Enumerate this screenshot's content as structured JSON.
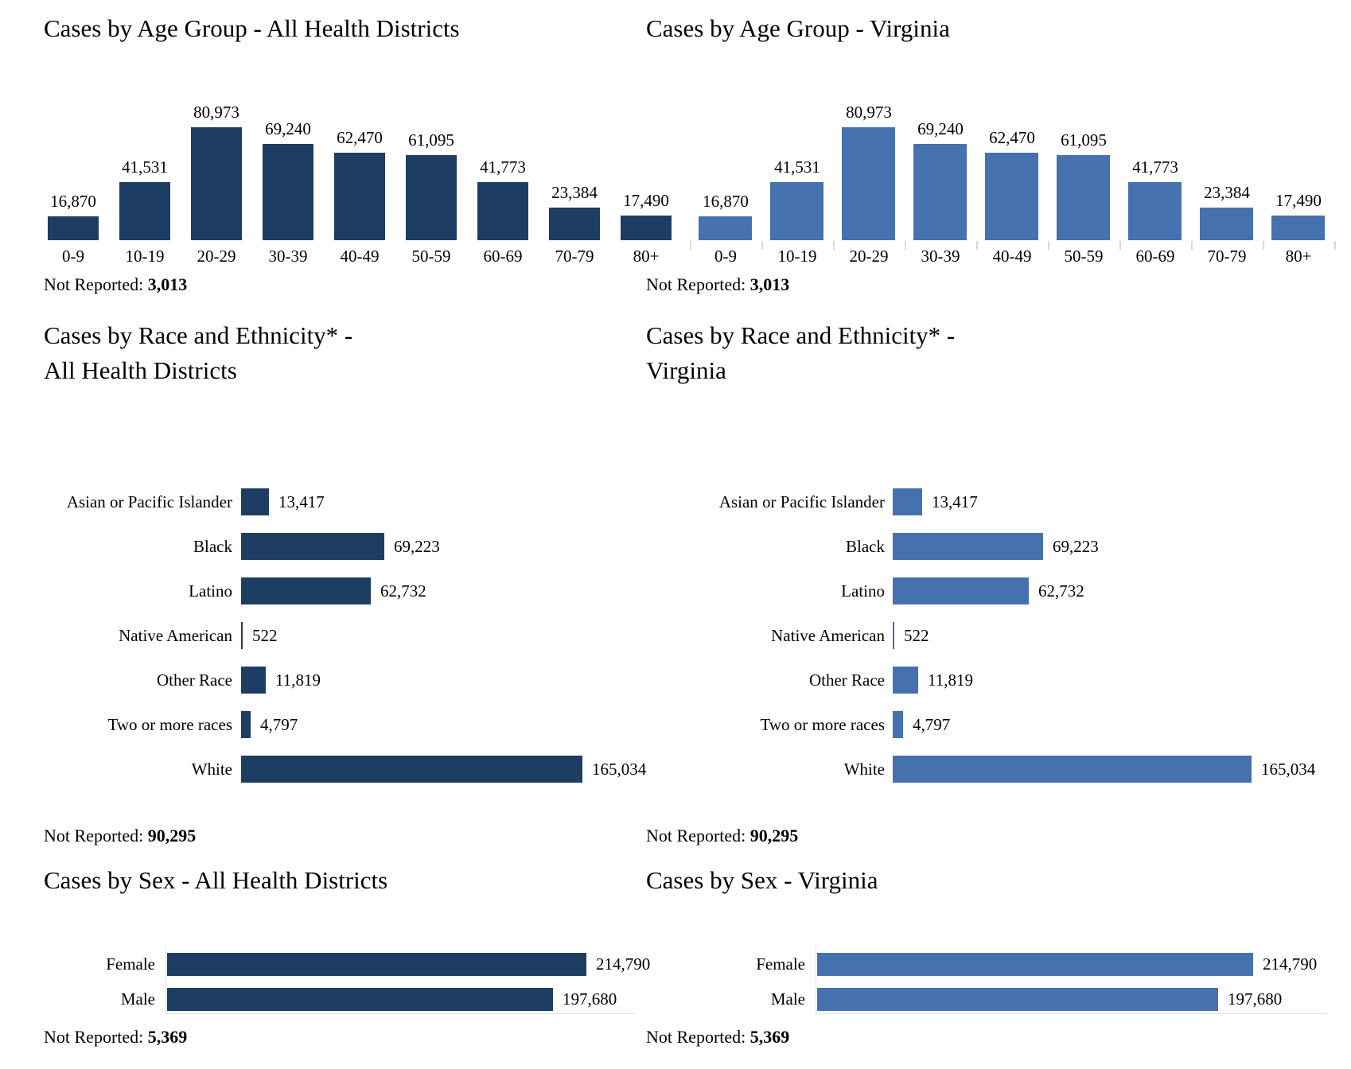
{
  "colors": {
    "dark_navy": "#1d3d63",
    "steel_blue": "#4571ae",
    "tick_gray": "#d9d9d9",
    "axis_gray": "#e0e0e0"
  },
  "labels": {
    "not_reported_prefix": "Not Reported:"
  },
  "chart_data": [
    {
      "id": "age-all",
      "type": "bar",
      "orientation": "vertical",
      "title": "Cases by Age Group - All Health Districts",
      "title_lines": [
        "Cases by Age Group - All Health Districts"
      ],
      "color": "dark_navy",
      "categories": [
        "0-9",
        "10-19",
        "20-29",
        "30-39",
        "40-49",
        "50-59",
        "60-69",
        "70-79",
        "80+"
      ],
      "values": [
        16870,
        41531,
        80973,
        69240,
        62470,
        61095,
        41773,
        23384,
        17490
      ],
      "value_labels": [
        "16,870",
        "41,531",
        "80,973",
        "69,240",
        "62,470",
        "61,095",
        "41,773",
        "23,384",
        "17,490"
      ],
      "not_reported": "3,013",
      "ylim": [
        0,
        81000
      ],
      "grid": false,
      "legend": false
    },
    {
      "id": "age-va",
      "type": "bar",
      "orientation": "vertical",
      "title": "Cases by Age Group - Virginia",
      "title_lines": [
        "Cases by Age Group - Virginia"
      ],
      "color": "steel_blue",
      "categories": [
        "0-9",
        "10-19",
        "20-29",
        "30-39",
        "40-49",
        "50-59",
        "60-69",
        "70-79",
        "80+"
      ],
      "values": [
        16870,
        41531,
        80973,
        69240,
        62470,
        61095,
        41773,
        23384,
        17490
      ],
      "value_labels": [
        "16,870",
        "41,531",
        "80,973",
        "69,240",
        "62,470",
        "61,095",
        "41,773",
        "23,384",
        "17,490"
      ],
      "not_reported": "3,013",
      "ylim": [
        0,
        81000
      ],
      "grid": false,
      "legend": false
    },
    {
      "id": "race-all",
      "type": "bar",
      "orientation": "horizontal",
      "title": "Cases by Race and Ethnicity* - All Health Districts",
      "title_lines": [
        "Cases by Race and Ethnicity* -",
        "All Health Districts"
      ],
      "color": "dark_navy",
      "categories": [
        "Asian or Pacific Islander",
        "Black",
        "Latino",
        "Native American",
        "Other Race",
        "Two or more races",
        "White"
      ],
      "values": [
        13417,
        69223,
        62732,
        522,
        11819,
        4797,
        165034
      ],
      "value_labels": [
        "13,417",
        "69,223",
        "62,732",
        "522",
        "11,819",
        "4,797",
        "165,034"
      ],
      "not_reported": "90,295",
      "xlim": [
        0,
        165034
      ],
      "grid": false,
      "legend": false
    },
    {
      "id": "race-va",
      "type": "bar",
      "orientation": "horizontal",
      "title": "Cases by Race and Ethnicity* - Virginia",
      "title_lines": [
        "Cases by Race and Ethnicity* -",
        "Virginia"
      ],
      "color": "steel_blue",
      "categories": [
        "Asian or Pacific Islander",
        "Black",
        "Latino",
        "Native American",
        "Other Race",
        "Two or more races",
        "White"
      ],
      "values": [
        13417,
        69223,
        62732,
        522,
        11819,
        4797,
        165034
      ],
      "value_labels": [
        "13,417",
        "69,223",
        "62,732",
        "522",
        "11,819",
        "4,797",
        "165,034"
      ],
      "not_reported": "90,295",
      "xlim": [
        0,
        165034
      ],
      "grid": false,
      "legend": false
    },
    {
      "id": "sex-all",
      "type": "bar",
      "orientation": "horizontal",
      "title": "Cases by Sex - All Health Districts",
      "title_lines": [
        "Cases by Sex - All Health Districts"
      ],
      "color": "dark_navy",
      "categories": [
        "Female",
        "Male"
      ],
      "values": [
        214790,
        197680
      ],
      "value_labels": [
        "214,790",
        "197,680"
      ],
      "not_reported": "5,369",
      "xlim": [
        0,
        214790
      ],
      "grid": false,
      "legend": false
    },
    {
      "id": "sex-va",
      "type": "bar",
      "orientation": "horizontal",
      "title": "Cases by Sex - Virginia",
      "title_lines": [
        "Cases by Sex - Virginia"
      ],
      "color": "steel_blue",
      "categories": [
        "Female",
        "Male"
      ],
      "values": [
        214790,
        197680
      ],
      "value_labels": [
        "214,790",
        "197,680"
      ],
      "not_reported": "5,369",
      "xlim": [
        0,
        214790
      ],
      "grid": false,
      "legend": false
    }
  ]
}
